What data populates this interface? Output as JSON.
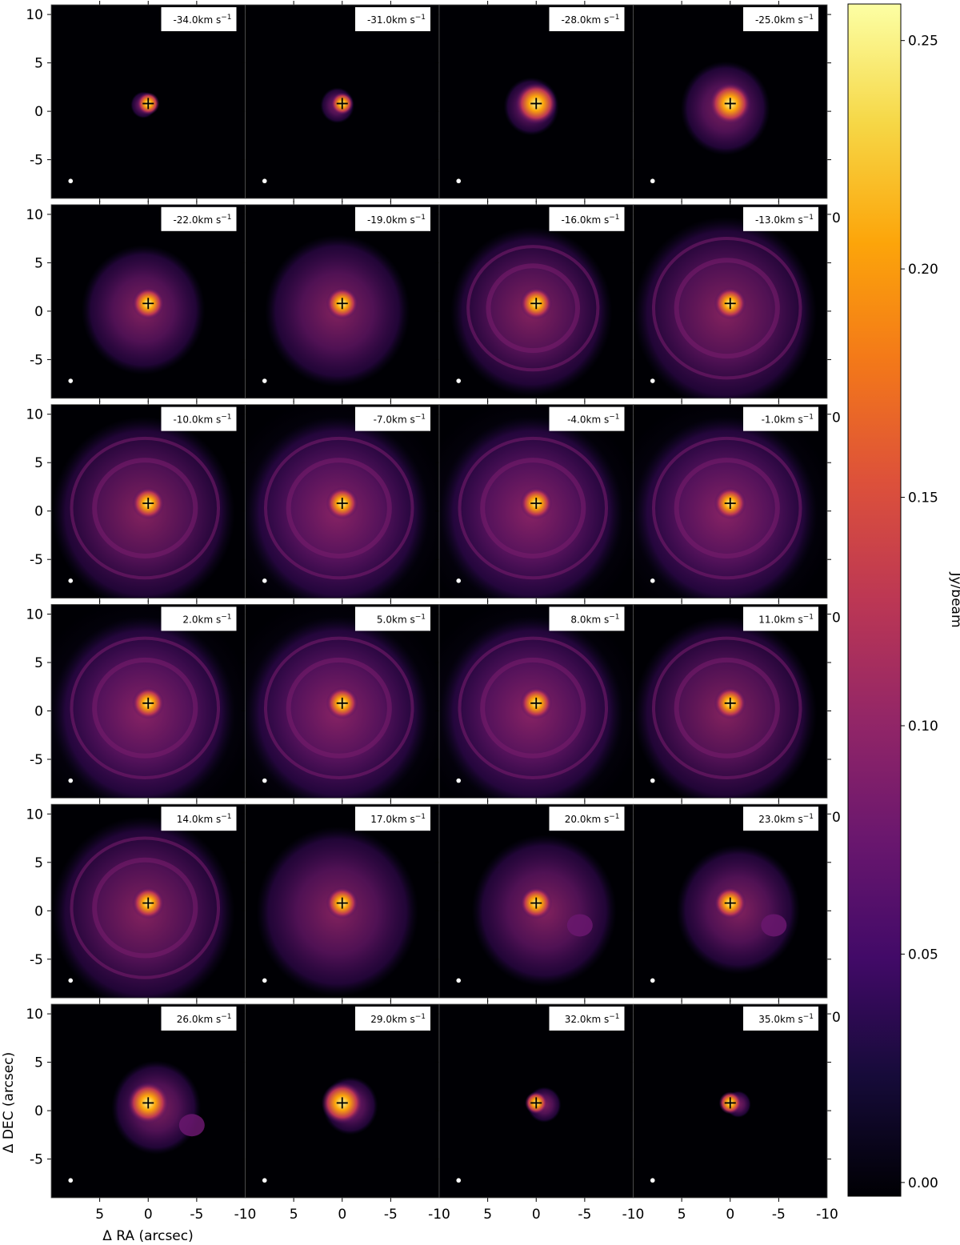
{
  "chart_data": {
    "type": "heatmap",
    "description_grid": "channel maps",
    "rows": 6,
    "cols": 4,
    "channels": [
      {
        "label": "-34.0km s",
        "velocity": -34.0
      },
      {
        "label": "-31.0km s",
        "velocity": -31.0
      },
      {
        "label": "-28.0km s",
        "velocity": -28.0
      },
      {
        "label": "-25.0km s",
        "velocity": -25.0
      },
      {
        "label": "-22.0km s",
        "velocity": -22.0
      },
      {
        "label": "-19.0km s",
        "velocity": -19.0
      },
      {
        "label": "-16.0km s",
        "velocity": -16.0
      },
      {
        "label": "-13.0km s",
        "velocity": -13.0
      },
      {
        "label": "-10.0km s",
        "velocity": -10.0
      },
      {
        "label": "-7.0km s",
        "velocity": -7.0
      },
      {
        "label": "-4.0km s",
        "velocity": -4.0
      },
      {
        "label": "-1.0km s",
        "velocity": -1.0
      },
      {
        "label": "2.0km s",
        "velocity": 2.0
      },
      {
        "label": "5.0km s",
        "velocity": 5.0
      },
      {
        "label": "8.0km s",
        "velocity": 8.0
      },
      {
        "label": "11.0km s",
        "velocity": 11.0
      },
      {
        "label": "14.0km s",
        "velocity": 14.0
      },
      {
        "label": "17.0km s",
        "velocity": 17.0
      },
      {
        "label": "20.0km s",
        "velocity": 20.0
      },
      {
        "label": "23.0km s",
        "velocity": 23.0
      },
      {
        "label": "26.0km s",
        "velocity": 26.0
      },
      {
        "label": "29.0km s",
        "velocity": 29.0
      },
      {
        "label": "32.0km s",
        "velocity": 32.0
      },
      {
        "label": "35.0km s",
        "velocity": 35.0
      }
    ],
    "velocity_superscript": "−1",
    "xlabel": "Δ RA (arcsec)",
    "ylabel": "Δ DEC (arcsec)",
    "xlim": [
      10,
      -10
    ],
    "ylim": [
      -9,
      11
    ],
    "x_ticks": [
      5,
      0,
      -5,
      -10
    ],
    "x_tick_labels": [
      "5",
      "0",
      "-5",
      "-10"
    ],
    "y_ticks": [
      10,
      5,
      0,
      -5
    ],
    "y_tick_labels": [
      "10",
      "5",
      "0",
      "-5"
    ],
    "source_position": [
      0,
      0.8
    ],
    "beam_marker_position": [
      8,
      -7.2
    ],
    "colorbar": {
      "label": "Jy/beam",
      "colormap": "inferno",
      "range": [
        -0.003,
        0.258
      ],
      "ticks": [
        0.0,
        0.05,
        0.1,
        0.15,
        0.2,
        0.25
      ],
      "tick_labels": [
        "0.00",
        "0.05",
        "0.10",
        "0.15",
        "0.20",
        "0.25"
      ]
    },
    "edge_artifact_text": "0",
    "colors": {
      "background": "#000004",
      "marker": "#000000",
      "beam": "#ffffff"
    }
  }
}
